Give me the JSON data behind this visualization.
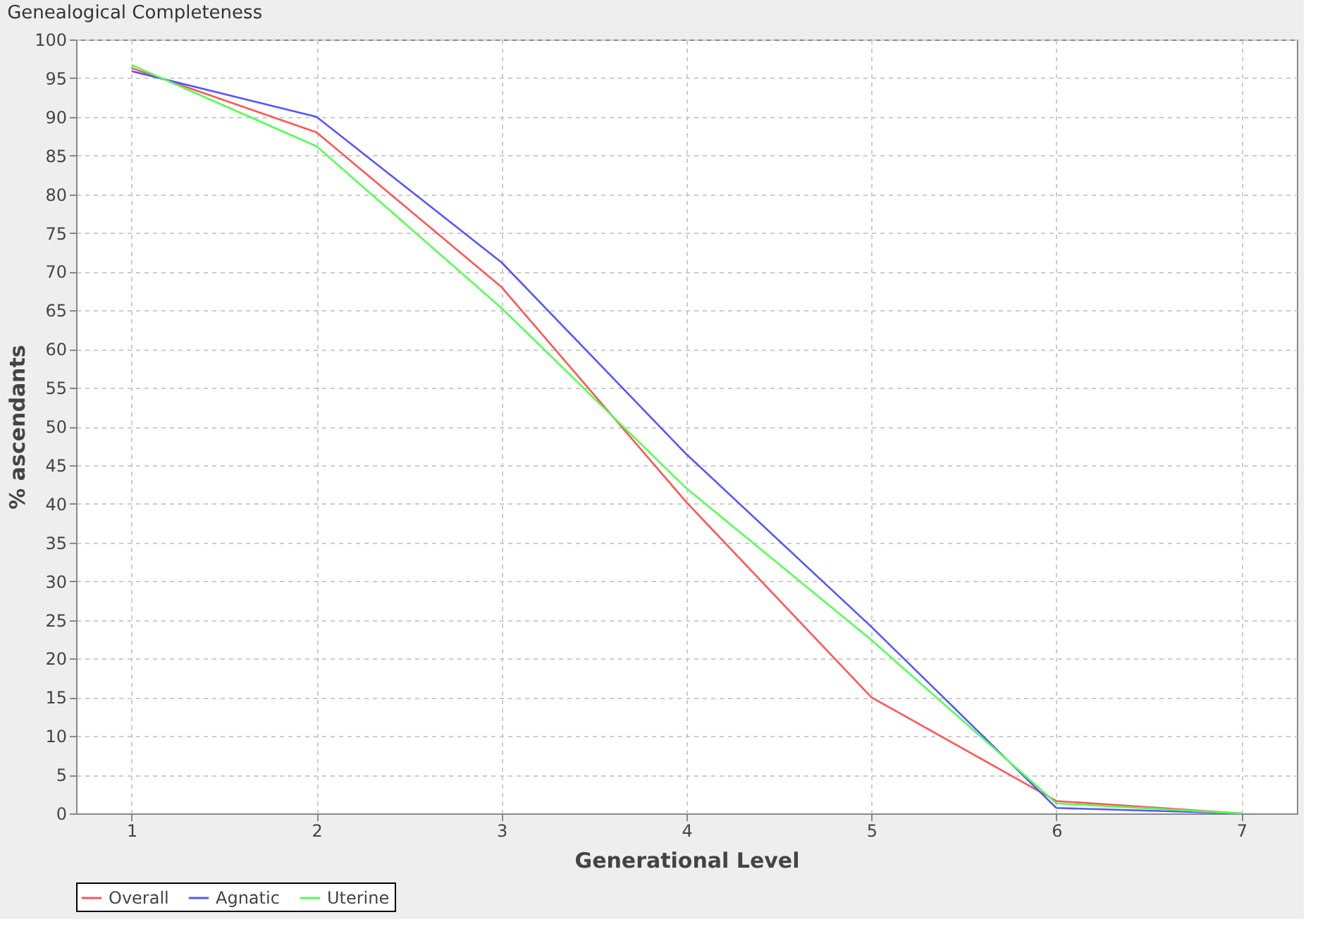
{
  "chart_data": {
    "type": "line",
    "title": "Genealogical Completeness",
    "xlabel": "Generational Level",
    "ylabel": "% ascendants",
    "x": [
      1,
      2,
      3,
      4,
      5,
      6,
      7
    ],
    "series": [
      {
        "name": "Overall",
        "color": "#ff5555",
        "values": [
          96.3,
          88,
          68,
          40.2,
          15,
          1.6,
          0
        ]
      },
      {
        "name": "Agnatic",
        "color": "#5555ff",
        "values": [
          95.9,
          90,
          71.2,
          46.4,
          24.1,
          0.7,
          0
        ]
      },
      {
        "name": "Uterine",
        "color": "#55ff55",
        "values": [
          96.7,
          86.2,
          65.3,
          42,
          22.4,
          1.3,
          0
        ]
      }
    ],
    "xlim": [
      0.7,
      7.3
    ],
    "xticks": [
      1,
      2,
      3,
      4,
      5,
      6,
      7
    ],
    "ylim": [
      0,
      100
    ],
    "yticks": [
      0,
      5,
      10,
      15,
      20,
      25,
      30,
      35,
      40,
      45,
      50,
      55,
      60,
      65,
      70,
      75,
      80,
      85,
      90,
      95,
      100
    ],
    "grid": true,
    "legend": "bottom",
    "marker": "none",
    "line_style": "solid"
  }
}
